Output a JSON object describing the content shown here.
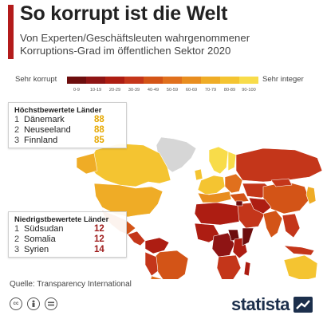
{
  "header": {
    "title": "So korrupt ist die Welt",
    "subtitle": "Von Experten/Geschäftsleuten wahrgenommener Korruptions-Grad im öffentlichen Sektor 2020"
  },
  "legend": {
    "left_label": "Sehr korrupt",
    "right_label": "Sehr integer",
    "bins": [
      "0-9",
      "10-19",
      "20-29",
      "30-39",
      "40-49",
      "50-59",
      "60-69",
      "70-79",
      "80-89",
      "90-100"
    ],
    "colors": [
      "#6d0e0e",
      "#8e1414",
      "#ad1d12",
      "#c4361a",
      "#d35417",
      "#e0701d",
      "#e88d1f",
      "#efac26",
      "#f4c431",
      "#f8dc4a"
    ],
    "no_data_color": "#d6d6d6"
  },
  "top_countries": {
    "heading": "Höchstbewertete Länder",
    "rows": [
      {
        "rank": "1",
        "name": "Dänemark",
        "score": "88"
      },
      {
        "rank": "2",
        "name": "Neuseeland",
        "score": "88"
      },
      {
        "rank": "3",
        "name": "Finnland",
        "score": "85"
      }
    ]
  },
  "bottom_countries": {
    "heading": "Niedrigstbewertete Länder",
    "rows": [
      {
        "rank": "1",
        "name": "Südsudan",
        "score": "12"
      },
      {
        "rank": "2",
        "name": "Somalia",
        "score": "12"
      },
      {
        "rank": "3",
        "name": "Syrien",
        "score": "14"
      }
    ]
  },
  "footer": {
    "source": "Quelle: Transparency International",
    "brand": "statista",
    "license_icons": [
      "cc-icon",
      "attribution-icon",
      "no-derivatives-icon"
    ]
  }
}
